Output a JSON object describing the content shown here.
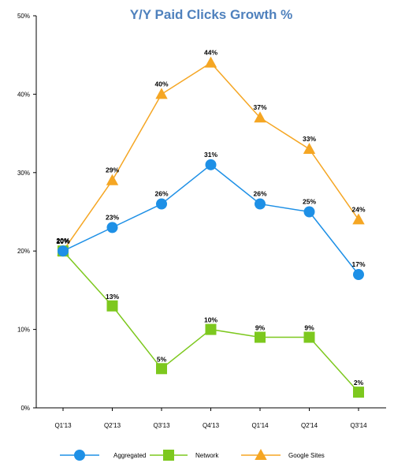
{
  "chart_data": {
    "type": "line",
    "title": "Y/Y Paid Clicks Growth %",
    "categories": [
      "Q1'13",
      "Q2'13",
      "Q3'13",
      "Q4'13",
      "Q1'14",
      "Q2'14",
      "Q3'14"
    ],
    "ylim": [
      0,
      50
    ],
    "yticks": [
      0,
      10,
      20,
      30,
      40,
      50
    ],
    "ytick_labels": [
      "0%",
      "10%",
      "20%",
      "30%",
      "40%",
      "50%"
    ],
    "grid": false,
    "legend_position": "bottom",
    "series": [
      {
        "name": "Aggregated",
        "marker": "circle",
        "color": "#1e90e6",
        "values": [
          20,
          23,
          26,
          31,
          26,
          25,
          17
        ],
        "labels": [
          "20%",
          "23%",
          "26%",
          "31%",
          "26%",
          "25%",
          "17%"
        ]
      },
      {
        "name": "Network",
        "marker": "square",
        "color": "#7dc81e",
        "values": [
          20,
          13,
          5,
          10,
          9,
          9,
          2
        ],
        "labels": [
          "20%",
          "13%",
          "5%",
          "10%",
          "9%",
          "9%",
          "2%"
        ]
      },
      {
        "name": "Google Sites",
        "marker": "triangle",
        "color": "#f5a623",
        "values": [
          20,
          29,
          40,
          44,
          37,
          33,
          24
        ],
        "labels": [
          "20%",
          "29%",
          "40%",
          "44%",
          "37%",
          "33%",
          "24%"
        ]
      }
    ]
  }
}
